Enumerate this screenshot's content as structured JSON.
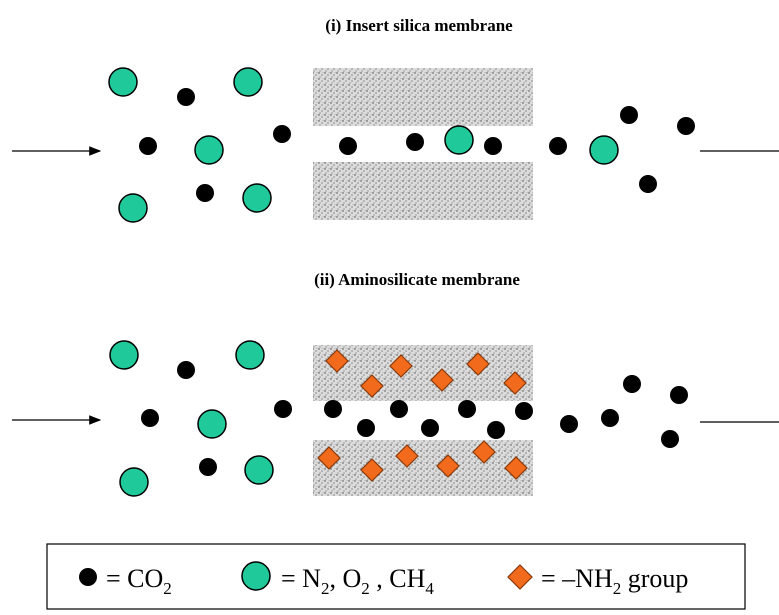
{
  "panels": [
    {
      "title": "(i) Insert silica membrane",
      "has_amine_sites": true
    },
    {
      "title": "(ii) Aminosilicate membrane",
      "has_amine_sites": true
    }
  ],
  "legend": {
    "co2": {
      "prefix": "= CO",
      "sub": "2"
    },
    "gases": {
      "parts": [
        {
          "base": "= N",
          "sub": "2"
        },
        {
          "base": ", O",
          "sub": "2"
        },
        {
          "base": " , CH",
          "sub": "4"
        }
      ]
    },
    "amine": {
      "prefix": "= –NH",
      "sub": "2",
      "suffix": " group"
    }
  },
  "colors": {
    "co2": "#000000",
    "gas": "#1fc99a",
    "amine": "#f26b1d",
    "amine_stroke": "#8a3a0a",
    "membrane": "#d9d9d9",
    "membrane_dots": "#555555",
    "arrow": "#000000"
  }
}
